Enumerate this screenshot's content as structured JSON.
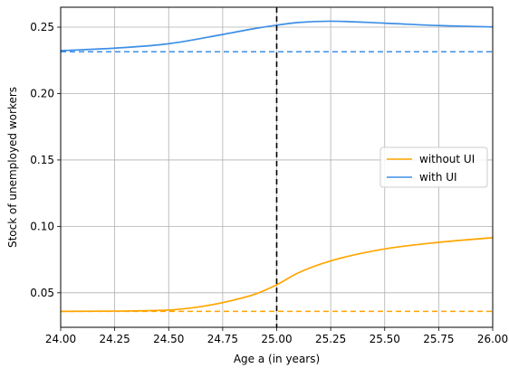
{
  "chart_data": {
    "type": "line",
    "title": "",
    "xlabel": "Age a (in years)",
    "ylabel": "Stock of unemployed workers",
    "xlim": [
      24.0,
      26.0
    ],
    "ylim": [
      0.024,
      0.265
    ],
    "xticks": [
      24.0,
      24.25,
      24.5,
      24.75,
      25.0,
      25.25,
      25.5,
      25.75,
      26.0
    ],
    "xtick_labels": [
      "24.00",
      "24.25",
      "24.50",
      "24.75",
      "25.00",
      "25.25",
      "25.50",
      "25.75",
      "26.00"
    ],
    "yticks": [
      0.05,
      0.1,
      0.15,
      0.2,
      0.25
    ],
    "ytick_labels": [
      "0.05",
      "0.10",
      "0.15",
      "0.20",
      "0.25"
    ],
    "grid": true,
    "legend_position": "center-right",
    "vline": {
      "x": 25.0,
      "color": "#000000",
      "style": "dashed"
    },
    "series": [
      {
        "name": "without UI",
        "color": "#ffa500",
        "x": [
          24.0,
          24.25,
          24.5,
          24.6,
          24.7,
          24.8,
          24.9,
          25.0,
          25.1,
          25.25,
          25.5,
          25.75,
          26.0
        ],
        "y": [
          0.036,
          0.0362,
          0.037,
          0.0385,
          0.041,
          0.0445,
          0.049,
          0.056,
          0.065,
          0.074,
          0.083,
          0.088,
          0.0915
        ],
        "baseline": 0.036
      },
      {
        "name": "with UI",
        "color": "#3d8fe6",
        "x": [
          24.0,
          24.25,
          24.5,
          24.75,
          24.9,
          25.0,
          25.1,
          25.25,
          25.5,
          25.75,
          26.0
        ],
        "y": [
          0.2323,
          0.2342,
          0.2375,
          0.2445,
          0.249,
          0.2515,
          0.2535,
          0.2545,
          0.253,
          0.2512,
          0.2502
        ],
        "baseline": 0.2315
      }
    ]
  }
}
